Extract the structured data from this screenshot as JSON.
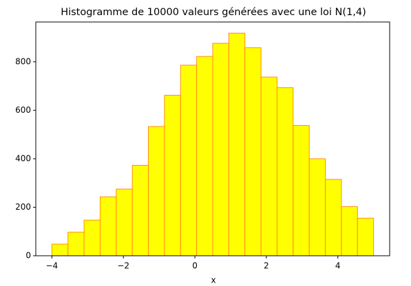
{
  "chart_data": {
    "type": "histogram",
    "title": "Histogramme de 10000 valeurs générées avec une loi N(1,4)",
    "xlabel": "x",
    "bins": [
      -4,
      -3.55,
      -3.1,
      -2.65,
      -2.2,
      -1.75,
      -1.3,
      -0.85,
      -0.4,
      0.05,
      0.5,
      0.95,
      1.4,
      1.85,
      2.3,
      2.75,
      3.2,
      3.65,
      4.1,
      4.55,
      5
    ],
    "values": [
      48,
      97,
      147,
      243,
      275,
      373,
      533,
      662,
      786,
      822,
      876,
      918,
      858,
      737,
      693,
      537,
      400,
      315,
      203,
      155
    ],
    "color": "#ffff00",
    "edgecolor": "#ff8c1a",
    "xlim": [
      -4.45,
      5.45
    ],
    "xticks": [
      {
        "value": -4,
        "label": "−4"
      },
      {
        "value": -2,
        "label": "−2"
      },
      0,
      2,
      4
    ],
    "ylim": [
      0,
      964
    ],
    "yticks": [
      0,
      200,
      400,
      600,
      800
    ],
    "grid": false
  }
}
